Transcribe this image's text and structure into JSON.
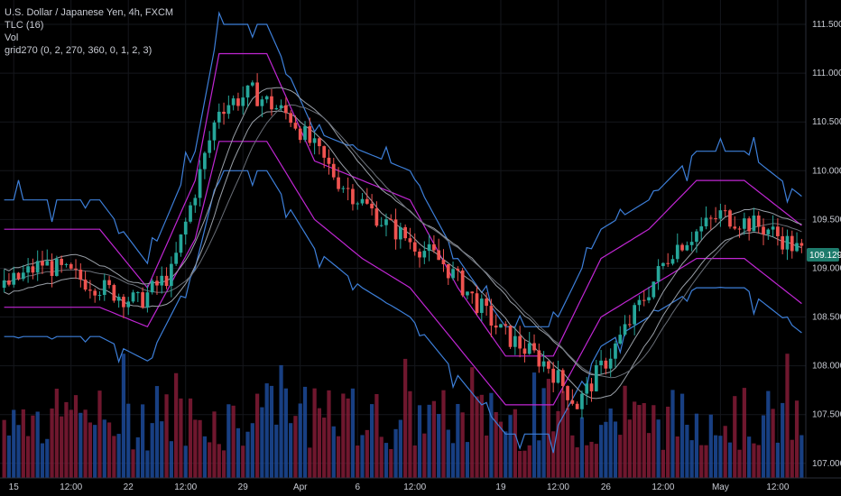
{
  "legend": {
    "symbol": "U.S. Dollar / Japanese Yen, 4h, FXCM",
    "indicator1": "TLC (16)",
    "indicator2": "Vol",
    "indicator3": "grid270 (0, 2, 270, 360, 0, 1, 2, 3)"
  },
  "last_price": "109.129",
  "colors": {
    "background": "#000000",
    "up_candle": "#26a69a",
    "down_candle": "#ef5350",
    "band_outer": "#3d7fd9",
    "band_inner": "#c026d3",
    "volume_up": "#1e4fa3",
    "volume_down": "#8b1d3a",
    "price_tag": "#1e7b6c"
  },
  "chart_data": {
    "type": "candlestick",
    "price_axis": {
      "ticks": [
        "111.500",
        "111.000",
        "110.500",
        "110.000",
        "109.500",
        "109.000",
        "108.500",
        "108.000",
        "107.500",
        "107.000"
      ],
      "range": [
        106.85,
        111.75
      ]
    },
    "time_axis": {
      "ticks": [
        "15",
        "12:00",
        "22",
        "12:00",
        "29",
        "Apr",
        "6",
        "12:00",
        "19",
        "12:00",
        "26",
        "12:00",
        "May",
        "12:00"
      ]
    },
    "price_path": [
      [
        0,
        108.8
      ],
      [
        8,
        109.05
      ],
      [
        18,
        108.85
      ],
      [
        28,
        108.65
      ],
      [
        35,
        108.95
      ],
      [
        45,
        110.65
      ],
      [
        52,
        110.8
      ],
      [
        60,
        110.55
      ],
      [
        70,
        109.9
      ],
      [
        80,
        109.45
      ],
      [
        92,
        109.05
      ],
      [
        104,
        108.35
      ],
      [
        114,
        108.0
      ],
      [
        120,
        107.6
      ],
      [
        128,
        108.2
      ],
      [
        140,
        109.2
      ],
      [
        150,
        109.55
      ],
      [
        160,
        109.4
      ],
      [
        168,
        109.13
      ]
    ],
    "upper_outer": [
      [
        0,
        109.7
      ],
      [
        20,
        109.7
      ],
      [
        30,
        109.05
      ],
      [
        40,
        110.2
      ],
      [
        45,
        111.5
      ],
      [
        55,
        111.5
      ],
      [
        65,
        110.4
      ],
      [
        75,
        110.2
      ],
      [
        85,
        110.0
      ],
      [
        95,
        109.1
      ],
      [
        105,
        108.4
      ],
      [
        115,
        108.4
      ],
      [
        125,
        109.4
      ],
      [
        135,
        109.7
      ],
      [
        145,
        110.2
      ],
      [
        155,
        110.2
      ],
      [
        168,
        109.7
      ]
    ],
    "upper_inner": [
      [
        0,
        109.4
      ],
      [
        20,
        109.4
      ],
      [
        30,
        108.8
      ],
      [
        40,
        109.9
      ],
      [
        45,
        111.2
      ],
      [
        55,
        111.2
      ],
      [
        65,
        110.1
      ],
      [
        75,
        109.9
      ],
      [
        85,
        109.7
      ],
      [
        95,
        108.8
      ],
      [
        105,
        108.1
      ],
      [
        115,
        108.1
      ],
      [
        125,
        109.1
      ],
      [
        135,
        109.4
      ],
      [
        145,
        109.9
      ],
      [
        155,
        109.9
      ],
      [
        168,
        109.4
      ]
    ],
    "lower_inner": [
      [
        0,
        108.6
      ],
      [
        20,
        108.6
      ],
      [
        30,
        108.4
      ],
      [
        40,
        109.3
      ],
      [
        45,
        110.3
      ],
      [
        55,
        110.3
      ],
      [
        65,
        109.5
      ],
      [
        75,
        109.1
      ],
      [
        85,
        108.8
      ],
      [
        95,
        108.2
      ],
      [
        105,
        107.6
      ],
      [
        115,
        107.6
      ],
      [
        125,
        108.5
      ],
      [
        135,
        108.8
      ],
      [
        145,
        109.1
      ],
      [
        155,
        109.1
      ],
      [
        168,
        108.6
      ]
    ],
    "lower_outer": [
      [
        0,
        108.3
      ],
      [
        20,
        108.3
      ],
      [
        30,
        108.05
      ],
      [
        40,
        109.0
      ],
      [
        45,
        110.0
      ],
      [
        55,
        110.0
      ],
      [
        65,
        109.2
      ],
      [
        75,
        108.8
      ],
      [
        85,
        108.5
      ],
      [
        95,
        107.9
      ],
      [
        105,
        107.3
      ],
      [
        115,
        107.3
      ],
      [
        125,
        108.2
      ],
      [
        135,
        108.5
      ],
      [
        145,
        108.8
      ],
      [
        155,
        108.8
      ],
      [
        168,
        108.3
      ]
    ],
    "candle_count": 168
  }
}
